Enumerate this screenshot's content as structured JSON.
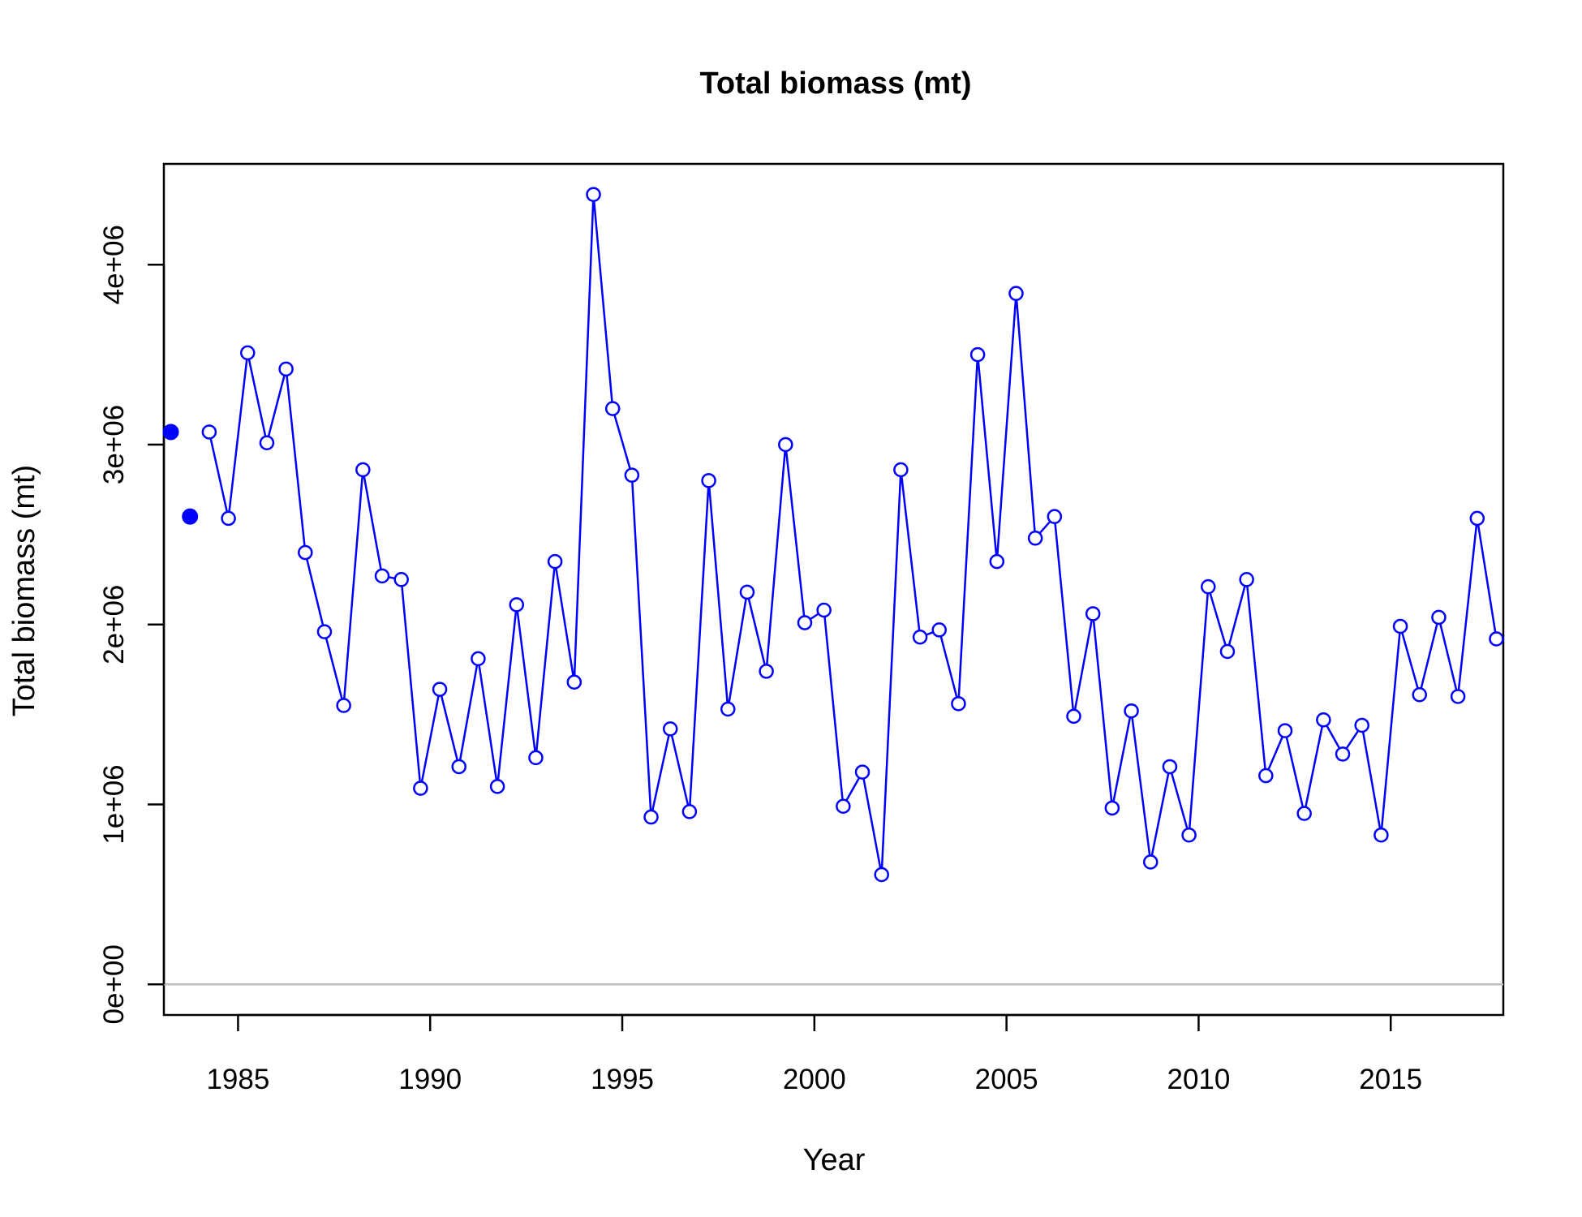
{
  "chart_data": {
    "type": "line",
    "title": "Total biomass (mt)",
    "xlabel": "Year",
    "ylabel": "Total biomass (mt)",
    "xlim": [
      1983.07,
      2017.93
    ],
    "ylim": [
      -170000,
      4560000
    ],
    "x_ticks": [
      1985,
      1990,
      1995,
      2000,
      2005,
      2010,
      2015
    ],
    "x_tick_labels": [
      "1985",
      "1990",
      "1995",
      "2000",
      "2005",
      "2010",
      "2015"
    ],
    "y_ticks": [
      0,
      1000000,
      2000000,
      3000000,
      4000000
    ],
    "y_tick_labels": [
      "0e+00",
      "1e+06",
      "2e+06",
      "3e+06",
      "4e+06"
    ],
    "reference_line": {
      "y": 0,
      "color": "#bebebe"
    },
    "series_color": "#0000ff",
    "highlight_points": {
      "x": [
        1983.25,
        1983.75
      ],
      "y": [
        3070000,
        2600000
      ]
    },
    "series": [
      {
        "x": [
          1984.25,
          1984.75,
          1985.25,
          1985.75,
          1986.25,
          1986.75,
          1987.25,
          1987.75,
          1988.25,
          1988.75,
          1989.25,
          1989.75,
          1990.25,
          1990.75,
          1991.25,
          1991.75,
          1992.25,
          1992.75,
          1993.25,
          1993.75,
          1994.25,
          1994.75,
          1995.25,
          1995.75,
          1996.25,
          1996.75,
          1997.25,
          1997.75,
          1998.25,
          1998.75,
          1999.25,
          1999.75,
          2000.25,
          2000.75,
          2001.25,
          2001.75,
          2002.25,
          2002.75,
          2003.25,
          2003.75,
          2004.25,
          2004.75,
          2005.25,
          2005.75,
          2006.25,
          2006.75,
          2007.25,
          2007.75,
          2008.25,
          2008.75,
          2009.25,
          2009.75,
          2010.25,
          2010.75,
          2011.25,
          2011.75,
          2012.25,
          2012.75,
          2013.25,
          2013.75,
          2014.25,
          2014.75,
          2015.25,
          2015.75,
          2016.25,
          2016.75,
          2017.25,
          2017.75
        ],
        "y": [
          3070000,
          2590000,
          3510000,
          3010000,
          3420000,
          2400000,
          1960000,
          1550000,
          2860000,
          2270000,
          2250000,
          1090000,
          1640000,
          1210000,
          1810000,
          1100000,
          2110000,
          1260000,
          2350000,
          1680000,
          4390000,
          3200000,
          2830000,
          930000,
          1420000,
          960000,
          2800000,
          1530000,
          2180000,
          1740000,
          3000000,
          2010000,
          2080000,
          990000,
          1180000,
          610000,
          2860000,
          1930000,
          1970000,
          1560000,
          3500000,
          2350000,
          3840000,
          2480000,
          2600000,
          1490000,
          2060000,
          980000,
          1520000,
          680000,
          1210000,
          830000,
          2210000,
          1850000,
          2250000,
          1160000,
          1410000,
          950000,
          1470000,
          1280000,
          1440000,
          830000,
          1990000,
          1610000,
          2040000,
          1600000,
          2590000,
          1920000
        ]
      }
    ]
  }
}
